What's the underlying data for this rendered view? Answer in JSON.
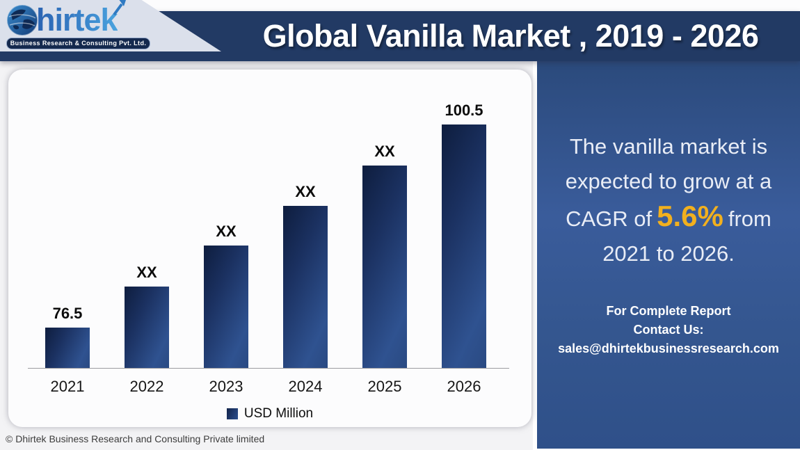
{
  "header": {
    "logo": {
      "brand": "Dhirtek",
      "brand_text": "hirtek",
      "tagline": "Business Research & Consulting Pvt. Ltd."
    },
    "title": "Global Vanilla Market , 2019 - 2026"
  },
  "chart_data": {
    "type": "bar",
    "title": "Global Vanilla Market , 2019 - 2026",
    "categories": [
      "2021",
      "2022",
      "2023",
      "2024",
      "2025",
      "2026"
    ],
    "bar_labels": [
      "76.5",
      "XX",
      "XX",
      "XX",
      "XX",
      "100.5"
    ],
    "known_values": {
      "2021": 76.5,
      "2026": 100.5
    },
    "values_estimated": [
      76.5,
      80.8,
      85.3,
      90.1,
      95.2,
      100.5
    ],
    "height_fractions": [
      0.166,
      0.334,
      0.503,
      0.666,
      0.831,
      1.0
    ],
    "unit": "USD Million",
    "legend": [
      {
        "label": "USD Million",
        "color": "#2b4f8e"
      }
    ],
    "legend_position": "bottom",
    "grid": false,
    "bar_gradient": [
      "#0e1d3e",
      "#2f5290"
    ],
    "axis_color": "#9b9ba0"
  },
  "panel": {
    "line1": "The vanilla market is",
    "line2": "expected to grow at a",
    "line3_pre": "CAGR of",
    "cagr": "5.6%",
    "line3_post": "from",
    "line4": "2021 to 2026.",
    "accent_color": "#f2b01e",
    "contact": {
      "line1": "For Complete Report",
      "line2": "Contact Us:",
      "email": "sales@dhirtekbusinessresearch.com"
    }
  },
  "footer": {
    "copyright": "© Dhirtek Business Research and Consulting Private limited"
  },
  "colors": {
    "band_navy": "#223a64",
    "panel_blue": "#32538d",
    "plate_gray": "#dbe0eb"
  }
}
